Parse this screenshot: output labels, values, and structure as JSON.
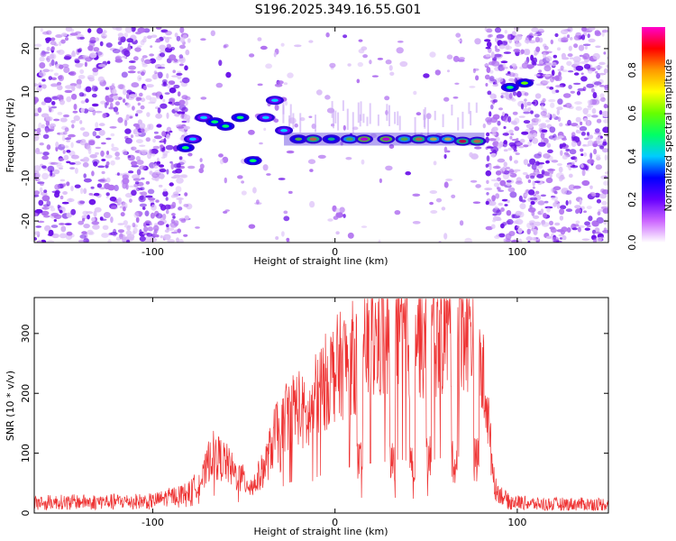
{
  "figure": {
    "title": "S196.2025.349.16.55.G01"
  },
  "chart_data": [
    {
      "type": "heatmap",
      "title": "",
      "xlabel": "Height of straight line (km)",
      "ylabel": "Frequency (Hz)",
      "xlim": [
        -165,
        150
      ],
      "ylim": [
        -25,
        25
      ],
      "xticks": [
        -100,
        0,
        100
      ],
      "xtick_labels": [
        "-100",
        "0",
        "100"
      ],
      "yticks": [
        -20,
        -10,
        0,
        10,
        20
      ],
      "ytick_labels": [
        "-20",
        "-10",
        "0",
        "10",
        "20"
      ],
      "colorbar": {
        "label": "Normalized spectral amplitude",
        "range": [
          0,
          1
        ],
        "ticks": [
          0.0,
          0.2,
          0.4,
          0.6,
          0.8
        ],
        "tick_labels": [
          "0.0",
          "0.2",
          "0.4",
          "0.6",
          "0.8"
        ],
        "colors": [
          "#ffffff",
          "#cc66ff",
          "#6600ff",
          "#0000ff",
          "#00ccff",
          "#00ff66",
          "#66ff00",
          "#ffff00",
          "#ff9900",
          "#ff0000",
          "#ff00cc"
        ]
      },
      "meteor_track": [
        {
          "x": -82,
          "y": -3,
          "v": 0.45
        },
        {
          "x": -78,
          "y": -1,
          "v": 0.35
        },
        {
          "x": -72,
          "y": 4,
          "v": 0.4
        },
        {
          "x": -66,
          "y": 3,
          "v": 0.45
        },
        {
          "x": -60,
          "y": 2,
          "v": 0.5
        },
        {
          "x": -52,
          "y": 4,
          "v": 0.45
        },
        {
          "x": -45,
          "y": -6,
          "v": 0.45
        },
        {
          "x": -38,
          "y": 4,
          "v": 0.4
        },
        {
          "x": -33,
          "y": 8,
          "v": 0.35
        },
        {
          "x": -28,
          "y": 1,
          "v": 0.4
        },
        {
          "x": -20,
          "y": -1,
          "v": 0.55
        },
        {
          "x": -12,
          "y": -1,
          "v": 0.75
        },
        {
          "x": -2,
          "y": -1,
          "v": 0.5
        },
        {
          "x": 8,
          "y": -1,
          "v": 0.6
        },
        {
          "x": 16,
          "y": -1,
          "v": 0.95
        },
        {
          "x": 28,
          "y": -1,
          "v": 0.95
        },
        {
          "x": 38,
          "y": -1,
          "v": 0.6
        },
        {
          "x": 46,
          "y": -1,
          "v": 0.75
        },
        {
          "x": 54,
          "y": -1,
          "v": 0.65
        },
        {
          "x": 62,
          "y": -1,
          "v": 0.7
        },
        {
          "x": 70,
          "y": -1.5,
          "v": 0.85
        },
        {
          "x": 78,
          "y": -1.5,
          "v": 0.8
        },
        {
          "x": 96,
          "y": 11,
          "v": 0.45
        },
        {
          "x": 104,
          "y": 12,
          "v": 0.55
        }
      ]
    },
    {
      "type": "line",
      "title": "",
      "xlabel": "Height of straight line (km)",
      "ylabel": "SNR (10 * v/v)",
      "xlim": [
        -165,
        150
      ],
      "ylim": [
        0,
        360
      ],
      "xticks": [
        -100,
        0,
        100
      ],
      "xtick_labels": [
        "-100",
        "0",
        "100"
      ],
      "yticks": [
        0,
        100,
        200,
        300
      ],
      "ytick_labels": [
        "0",
        "100",
        "200",
        "300"
      ],
      "color": "#ee3333",
      "envelope": {
        "x": [
          -165,
          -100,
          -80,
          -72,
          -68,
          -60,
          -55,
          -45,
          -40,
          -37,
          -35,
          -32,
          -30,
          -28,
          -25,
          -20,
          -15,
          -10,
          -5,
          0,
          5,
          10,
          15,
          20,
          25,
          30,
          35,
          40,
          45,
          50,
          55,
          60,
          65,
          70,
          75,
          78,
          80,
          83,
          85,
          88,
          95,
          110,
          150
        ],
        "y": [
          18,
          20,
          35,
          60,
          100,
          85,
          65,
          45,
          70,
          90,
          110,
          140,
          110,
          160,
          170,
          180,
          150,
          200,
          220,
          240,
          250,
          260,
          265,
          280,
          290,
          280,
          300,
          290,
          310,
          280,
          300,
          310,
          305,
          320,
          310,
          280,
          240,
          200,
          120,
          40,
          20,
          15,
          15
        ]
      },
      "dropouts": [
        {
          "x": 12,
          "w": 3,
          "to": 85
        },
        {
          "x": 30,
          "w": 3,
          "to": 85
        },
        {
          "x": 41,
          "w": 3,
          "to": 80
        },
        {
          "x": 50,
          "w": 3,
          "to": 95
        },
        {
          "x": 64,
          "w": 3,
          "to": 85
        },
        {
          "x": 76,
          "w": 3,
          "to": 90
        }
      ]
    }
  ]
}
